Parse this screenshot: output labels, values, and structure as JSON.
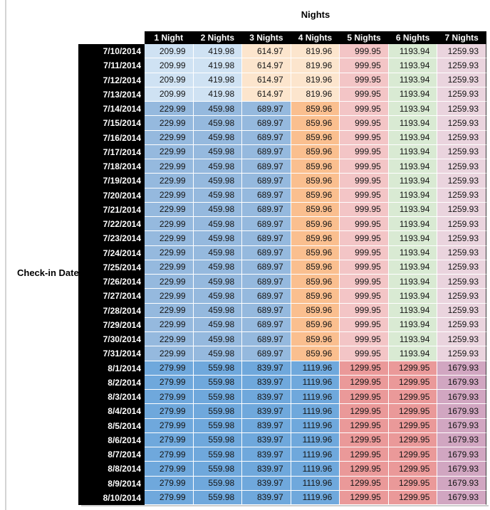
{
  "chart_data": {
    "type": "table",
    "title": "Nights",
    "column_axis_label": "Nights",
    "row_axis_label": "Check-in Date",
    "columns": [
      "1 Night",
      "2 Nights",
      "3 Nights",
      "4 Nights",
      "5 Nights",
      "6 Nights",
      "7 Nights"
    ],
    "rows": [
      {
        "date": "7/10/2014",
        "tier": "low",
        "values": [
          209.99,
          419.98,
          614.97,
          819.96,
          999.95,
          1193.94,
          1259.93
        ]
      },
      {
        "date": "7/11/2014",
        "tier": "low",
        "values": [
          209.99,
          419.98,
          614.97,
          819.96,
          999.95,
          1193.94,
          1259.93
        ]
      },
      {
        "date": "7/12/2014",
        "tier": "low",
        "values": [
          209.99,
          419.98,
          614.97,
          819.96,
          999.95,
          1193.94,
          1259.93
        ]
      },
      {
        "date": "7/13/2014",
        "tier": "low",
        "values": [
          209.99,
          419.98,
          614.97,
          819.96,
          999.95,
          1193.94,
          1259.93
        ]
      },
      {
        "date": "7/14/2014",
        "tier": "mid",
        "values": [
          229.99,
          459.98,
          689.97,
          859.96,
          999.95,
          1193.94,
          1259.93
        ]
      },
      {
        "date": "7/15/2014",
        "tier": "mid",
        "values": [
          229.99,
          459.98,
          689.97,
          859.96,
          999.95,
          1193.94,
          1259.93
        ]
      },
      {
        "date": "7/16/2014",
        "tier": "mid",
        "values": [
          229.99,
          459.98,
          689.97,
          859.96,
          999.95,
          1193.94,
          1259.93
        ]
      },
      {
        "date": "7/17/2014",
        "tier": "mid",
        "values": [
          229.99,
          459.98,
          689.97,
          859.96,
          999.95,
          1193.94,
          1259.93
        ]
      },
      {
        "date": "7/18/2014",
        "tier": "mid",
        "values": [
          229.99,
          459.98,
          689.97,
          859.96,
          999.95,
          1193.94,
          1259.93
        ]
      },
      {
        "date": "7/19/2014",
        "tier": "mid",
        "values": [
          229.99,
          459.98,
          689.97,
          859.96,
          999.95,
          1193.94,
          1259.93
        ]
      },
      {
        "date": "7/20/2014",
        "tier": "mid",
        "values": [
          229.99,
          459.98,
          689.97,
          859.96,
          999.95,
          1193.94,
          1259.93
        ]
      },
      {
        "date": "7/21/2014",
        "tier": "mid",
        "values": [
          229.99,
          459.98,
          689.97,
          859.96,
          999.95,
          1193.94,
          1259.93
        ]
      },
      {
        "date": "7/22/2014",
        "tier": "mid",
        "values": [
          229.99,
          459.98,
          689.97,
          859.96,
          999.95,
          1193.94,
          1259.93
        ]
      },
      {
        "date": "7/23/2014",
        "tier": "mid",
        "values": [
          229.99,
          459.98,
          689.97,
          859.96,
          999.95,
          1193.94,
          1259.93
        ]
      },
      {
        "date": "7/24/2014",
        "tier": "mid",
        "values": [
          229.99,
          459.98,
          689.97,
          859.96,
          999.95,
          1193.94,
          1259.93
        ]
      },
      {
        "date": "7/25/2014",
        "tier": "mid",
        "values": [
          229.99,
          459.98,
          689.97,
          859.96,
          999.95,
          1193.94,
          1259.93
        ]
      },
      {
        "date": "7/26/2014",
        "tier": "mid",
        "values": [
          229.99,
          459.98,
          689.97,
          859.96,
          999.95,
          1193.94,
          1259.93
        ]
      },
      {
        "date": "7/27/2014",
        "tier": "mid",
        "values": [
          229.99,
          459.98,
          689.97,
          859.96,
          999.95,
          1193.94,
          1259.93
        ]
      },
      {
        "date": "7/28/2014",
        "tier": "mid",
        "values": [
          229.99,
          459.98,
          689.97,
          859.96,
          999.95,
          1193.94,
          1259.93
        ]
      },
      {
        "date": "7/29/2014",
        "tier": "mid",
        "values": [
          229.99,
          459.98,
          689.97,
          859.96,
          999.95,
          1193.94,
          1259.93
        ]
      },
      {
        "date": "7/30/2014",
        "tier": "mid",
        "values": [
          229.99,
          459.98,
          689.97,
          859.96,
          999.95,
          1193.94,
          1259.93
        ]
      },
      {
        "date": "7/31/2014",
        "tier": "mid",
        "values": [
          229.99,
          459.98,
          689.97,
          859.96,
          999.95,
          1193.94,
          1259.93
        ]
      },
      {
        "date": "8/1/2014",
        "tier": "high",
        "values": [
          279.99,
          559.98,
          839.97,
          1119.96,
          1299.95,
          1299.95,
          1679.93
        ]
      },
      {
        "date": "8/2/2014",
        "tier": "high",
        "values": [
          279.99,
          559.98,
          839.97,
          1119.96,
          1299.95,
          1299.95,
          1679.93
        ]
      },
      {
        "date": "8/3/2014",
        "tier": "high",
        "values": [
          279.99,
          559.98,
          839.97,
          1119.96,
          1299.95,
          1299.95,
          1679.93
        ]
      },
      {
        "date": "8/4/2014",
        "tier": "high",
        "values": [
          279.99,
          559.98,
          839.97,
          1119.96,
          1299.95,
          1299.95,
          1679.93
        ]
      },
      {
        "date": "8/5/2014",
        "tier": "high",
        "values": [
          279.99,
          559.98,
          839.97,
          1119.96,
          1299.95,
          1299.95,
          1679.93
        ]
      },
      {
        "date": "8/6/2014",
        "tier": "high",
        "values": [
          279.99,
          559.98,
          839.97,
          1119.96,
          1299.95,
          1299.95,
          1679.93
        ]
      },
      {
        "date": "8/7/2014",
        "tier": "high",
        "values": [
          279.99,
          559.98,
          839.97,
          1119.96,
          1299.95,
          1299.95,
          1679.93
        ]
      },
      {
        "date": "8/8/2014",
        "tier": "high",
        "values": [
          279.99,
          559.98,
          839.97,
          1119.96,
          1299.95,
          1299.95,
          1679.93
        ]
      },
      {
        "date": "8/9/2014",
        "tier": "high",
        "values": [
          279.99,
          559.98,
          839.97,
          1119.96,
          1299.95,
          1299.95,
          1679.93
        ]
      },
      {
        "date": "8/10/2014",
        "tier": "high",
        "values": [
          279.99,
          559.98,
          839.97,
          1119.96,
          1299.95,
          1299.95,
          1679.93
        ]
      }
    ]
  },
  "styles": {
    "header_bg": "#000000",
    "header_text_color": "#ffffff",
    "cell_text_color": "#141414",
    "gridline_color": "#ffffff",
    "tier_cell_colors": {
      "low": [
        "#cfe2f3",
        "#cfe2f3",
        "#fce5cd",
        "#fce5cd",
        "#f3c5c6",
        "#d9ead3",
        "#ead4de"
      ],
      "mid": [
        "#95b9de",
        "#95b9de",
        "#95b9de",
        "#fabf8f",
        "#f3c5c6",
        "#d9ead3",
        "#ead4de"
      ],
      "high": [
        "#6fa8dc",
        "#6fa8dc",
        "#6fa8dc",
        "#6fa8dc",
        "#ea9999",
        "#ea9999",
        "#d1a6c1"
      ]
    }
  }
}
